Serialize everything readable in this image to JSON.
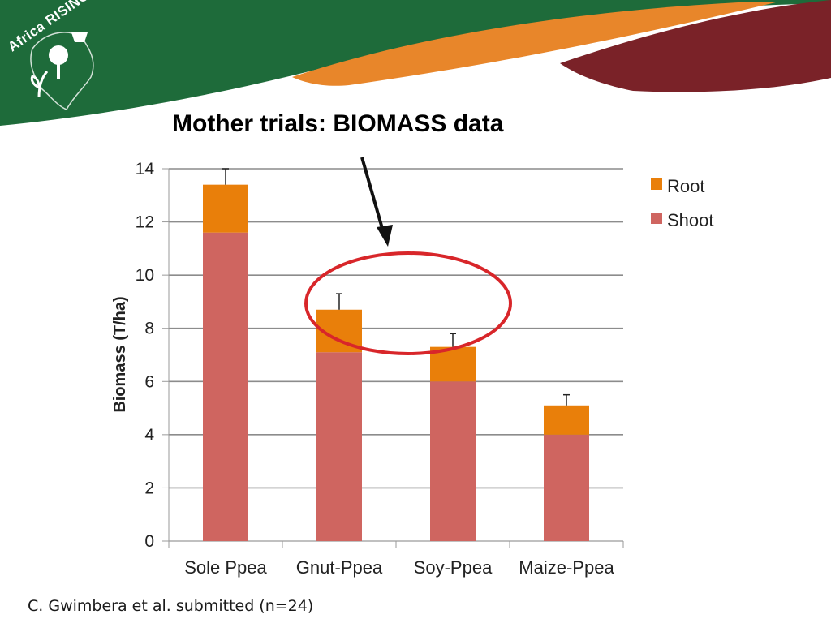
{
  "slide": {
    "title": "Mother trials: BIOMASS data",
    "citation": "C. Gwimbera et al. submitted (n=24)",
    "logo_text": "Africa RISING"
  },
  "colors": {
    "banner_green": "#1e6b3a",
    "banner_orange": "#e8862a",
    "banner_maroon": "#7a2228",
    "root": "#e97f0a",
    "shoot": "#cf6560",
    "highlight_circle": "#d8262a",
    "arrow": "#111111"
  },
  "chart_data": {
    "type": "bar",
    "stacked": true,
    "categories": [
      "Sole Ppea",
      "Gnut-Ppea",
      "Soy-Ppea",
      "Maize-Ppea"
    ],
    "series": [
      {
        "name": "Shoot",
        "values": [
          11.6,
          7.1,
          6.0,
          4.0
        ]
      },
      {
        "name": "Root",
        "values": [
          1.8,
          1.6,
          1.3,
          1.1
        ]
      }
    ],
    "error_bars_top": [
      14.0,
      9.3,
      7.8,
      5.5
    ],
    "ylabel": "Biomass (T/ha)",
    "xlabel": "",
    "ylim": [
      0,
      14
    ],
    "yticks": [
      "0",
      "2",
      "4",
      "6",
      "8",
      "10",
      "12",
      "14"
    ],
    "grid": true,
    "legend": "top-right",
    "legend_entries": [
      "Root",
      "Shoot"
    ],
    "annotation": "circle and arrow highlight Gnut-Ppea"
  }
}
